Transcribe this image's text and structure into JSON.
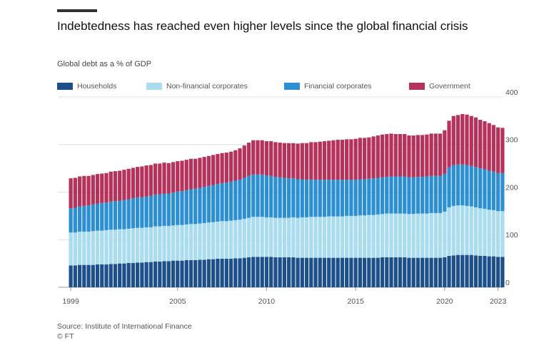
{
  "chart_data": {
    "type": "stacked_bar",
    "title": "Indebtedness has reached even higher levels since the global financial crisis",
    "subtitle": "Global debt as a % of GDP",
    "source": "Source: Institute of International Finance",
    "credit": "© FT",
    "categories": [
      "1999",
      null,
      null,
      null,
      null,
      null,
      null,
      null,
      null,
      null,
      null,
      null,
      null,
      null,
      null,
      null,
      null,
      null,
      null,
      null,
      null,
      null,
      null,
      null,
      "2005",
      null,
      null,
      null,
      null,
      null,
      null,
      null,
      null,
      null,
      null,
      null,
      null,
      null,
      null,
      null,
      null,
      null,
      null,
      null,
      "2010",
      null,
      null,
      null,
      null,
      null,
      null,
      null,
      null,
      null,
      null,
      null,
      null,
      null,
      null,
      null,
      null,
      null,
      null,
      null,
      "2015",
      null,
      null,
      null,
      null,
      null,
      null,
      null,
      null,
      null,
      null,
      null,
      null,
      null,
      null,
      null,
      null,
      null,
      null,
      null,
      "2020",
      null,
      null,
      null,
      null,
      null,
      null,
      null,
      null,
      null,
      null,
      null,
      "2023",
      null
    ],
    "series": [
      {
        "name": "Households",
        "color": "#1d4f8a",
        "values": [
          46,
          46,
          47,
          47,
          47,
          47,
          48,
          48,
          48,
          49,
          49,
          50,
          50,
          51,
          51,
          52,
          52,
          53,
          53,
          54,
          54,
          55,
          55,
          56,
          56,
          56,
          57,
          57,
          57,
          58,
          58,
          59,
          59,
          60,
          60,
          60,
          60,
          61,
          61,
          62,
          63,
          64,
          64,
          64,
          64,
          64,
          63,
          63,
          63,
          63,
          63,
          62,
          62,
          62,
          62,
          62,
          62,
          62,
          62,
          62,
          62,
          62,
          62,
          62,
          62,
          62,
          62,
          62,
          62,
          62,
          63,
          63,
          63,
          63,
          63,
          63,
          62,
          62,
          62,
          62,
          62,
          62,
          62,
          62,
          63,
          66,
          67,
          68,
          68,
          68,
          68,
          67,
          66,
          66,
          65,
          65,
          64,
          64
        ]
      },
      {
        "name": "Non-financial corporates",
        "color": "#a8dcee",
        "values": [
          69,
          69,
          70,
          70,
          70,
          71,
          71,
          71,
          72,
          72,
          72,
          72,
          72,
          72,
          73,
          73,
          73,
          73,
          73,
          74,
          74,
          74,
          74,
          74,
          75,
          75,
          75,
          76,
          76,
          76,
          77,
          77,
          78,
          78,
          79,
          79,
          80,
          80,
          81,
          82,
          83,
          84,
          84,
          84,
          83,
          83,
          83,
          83,
          83,
          83,
          84,
          84,
          85,
          85,
          86,
          86,
          86,
          86,
          87,
          87,
          87,
          87,
          88,
          88,
          88,
          89,
          89,
          90,
          90,
          91,
          91,
          92,
          92,
          92,
          92,
          92,
          92,
          92,
          93,
          93,
          93,
          94,
          94,
          94,
          96,
          102,
          104,
          104,
          104,
          103,
          102,
          101,
          100,
          99,
          98,
          97,
          96,
          96
        ]
      },
      {
        "name": "Financial corporates",
        "color": "#2b8fd1",
        "values": [
          51,
          52,
          53,
          54,
          55,
          56,
          57,
          58,
          58,
          59,
          60,
          60,
          61,
          62,
          63,
          64,
          64,
          65,
          66,
          67,
          67,
          68,
          68,
          69,
          70,
          71,
          72,
          73,
          74,
          75,
          76,
          77,
          78,
          79,
          80,
          81,
          82,
          83,
          84,
          86,
          88,
          89,
          89,
          89,
          88,
          87,
          86,
          85,
          84,
          83,
          82,
          81,
          80,
          79,
          79,
          78,
          78,
          78,
          77,
          77,
          77,
          77,
          76,
          76,
          76,
          76,
          76,
          76,
          77,
          77,
          77,
          77,
          78,
          78,
          78,
          78,
          77,
          77,
          77,
          77,
          78,
          78,
          78,
          78,
          80,
          84,
          86,
          86,
          86,
          86,
          85,
          85,
          84,
          83,
          82,
          81,
          80,
          80
        ]
      },
      {
        "name": "Government",
        "color": "#b5325a",
        "values": [
          63,
          63,
          63,
          63,
          62,
          62,
          62,
          62,
          62,
          63,
          63,
          63,
          64,
          64,
          64,
          64,
          65,
          65,
          65,
          65,
          65,
          65,
          64,
          64,
          64,
          64,
          64,
          64,
          63,
          63,
          63,
          63,
          63,
          63,
          63,
          63,
          63,
          64,
          66,
          68,
          70,
          72,
          72,
          72,
          72,
          73,
          73,
          73,
          73,
          74,
          74,
          75,
          76,
          77,
          78,
          79,
          80,
          81,
          82,
          83,
          84,
          84,
          85,
          85,
          86,
          87,
          87,
          87,
          88,
          89,
          90,
          90,
          90,
          89,
          89,
          89,
          88,
          88,
          88,
          88,
          88,
          89,
          89,
          89,
          91,
          98,
          103,
          104,
          106,
          106,
          105,
          104,
          102,
          101,
          100,
          98,
          96,
          95
        ]
      }
    ],
    "ylim": [
      0,
      400
    ],
    "yticks": [
      0,
      100,
      200,
      300,
      400
    ],
    "grid": true
  }
}
